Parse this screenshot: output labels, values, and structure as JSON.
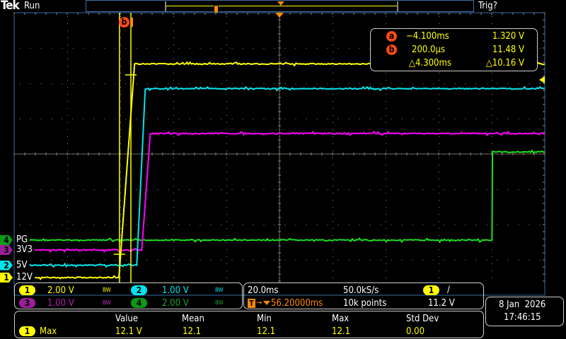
{
  "header": {
    "brand": "Tek",
    "run_state": "Run",
    "trigger_status": "Trig?"
  },
  "colors": {
    "ch1": "#ffff00",
    "ch2": "#00e5ee",
    "ch3": "#ff00ff",
    "ch4": "#22dd22",
    "trigger": "#ff8c00",
    "frame": "#3a6ea5",
    "cursor_badge": "#ff4a1a"
  },
  "cursors": {
    "a": {
      "badge": "a",
      "time": "−4.100ms",
      "value": "1.320 V"
    },
    "b": {
      "badge": "b",
      "time": "200.0µs",
      "value": "11.48 V"
    },
    "delta_time": "△4.300ms",
    "delta_value": "△10.16 V"
  },
  "channel_labels": [
    {
      "num": "4",
      "label": "PG"
    },
    {
      "num": "3",
      "label": "3V3"
    },
    {
      "num": "2",
      "label": "5V"
    },
    {
      "num": "1",
      "label": "12V"
    }
  ],
  "channels": [
    {
      "num": "1",
      "scale": "2.00 V",
      "bw": "BW"
    },
    {
      "num": "2",
      "scale": "1.00 V",
      "bw": "BW"
    },
    {
      "num": "3",
      "scale": "1.00 V",
      "bw": "BW"
    },
    {
      "num": "4",
      "scale": "2.00 V",
      "bw": "BW"
    }
  ],
  "timebase": {
    "scale": "20.0ms",
    "position": "56.20000ms",
    "sample_rate": "50.0kS/s",
    "record_length": "10k points",
    "trigger_source": "1",
    "trigger_slope": "rising",
    "trigger_level": "11.2 V"
  },
  "datetime": {
    "date": "8 Jan  2026",
    "time": "17:46:15"
  },
  "measurement": {
    "headers": [
      "Value",
      "Mean",
      "Min",
      "Max",
      "Std Dev"
    ],
    "source": "1",
    "name": "Max",
    "values": [
      "12.1 V",
      "12.1",
      "12.1",
      "12.1",
      "0.00"
    ]
  },
  "chart_data": {
    "type": "line",
    "x_unit": "ms",
    "xlim": [
      -43.8,
      156.2
    ],
    "grid": true,
    "divisions": {
      "x": 10,
      "y": 8
    },
    "series": [
      {
        "name": "12V",
        "channel": "1",
        "volts_per_div": 2.0,
        "ground_div": -3.5,
        "x": [
          -36,
          -4.3,
          1.6,
          156.2
        ],
        "y": [
          0,
          0,
          12.1,
          12.1
        ]
      },
      {
        "name": "5V",
        "channel": "2",
        "volts_per_div": 1.0,
        "ground_div": -3.15,
        "x": [
          -38,
          2.4,
          5.6,
          156.2
        ],
        "y": [
          0,
          0,
          5.0,
          5.0
        ]
      },
      {
        "name": "3V3",
        "channel": "3",
        "volts_per_div": 1.0,
        "ground_div": -2.72,
        "x": [
          -36,
          4.3,
          7.5,
          156.2
        ],
        "y": [
          0,
          0,
          3.3,
          3.3
        ]
      },
      {
        "name": "PG",
        "channel": "4",
        "volts_per_div": 2.0,
        "ground_div": -2.44,
        "x": [
          -38,
          136.3,
          136.5,
          156.2
        ],
        "y": [
          0,
          0,
          5.0,
          5.0
        ]
      }
    ],
    "cursors_ms": [
      -4.1,
      0.2
    ],
    "cursor_volts": [
      1.32,
      11.48
    ]
  }
}
